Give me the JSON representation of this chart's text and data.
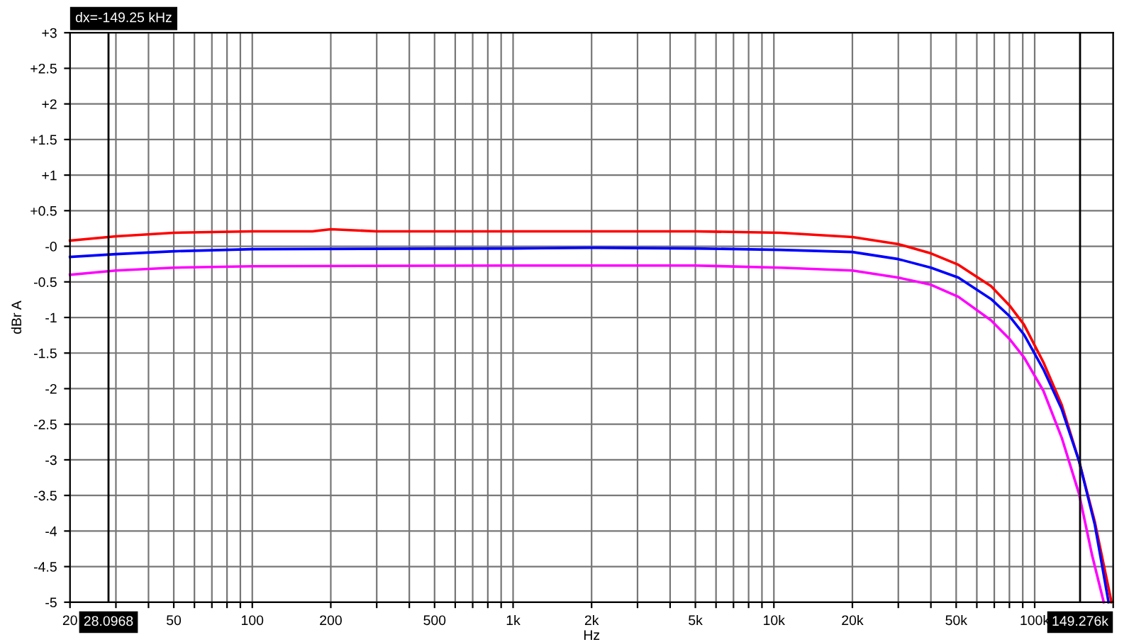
{
  "chart_data": {
    "type": "line",
    "xlabel": "Hz",
    "ylabel": "dBr A",
    "log": "x",
    "grid": true,
    "marker": "none",
    "line_style": "solid",
    "xlim": [
      20,
      200000
    ],
    "ylim": [
      -5,
      3
    ],
    "xticks": [
      20,
      {
        "value": 30,
        "label": null
      },
      {
        "value": 40,
        "label": null
      },
      50,
      {
        "value": 60,
        "label": null
      },
      {
        "value": 70,
        "label": null
      },
      {
        "value": 80,
        "label": null
      },
      {
        "value": 90,
        "label": null
      },
      100,
      200,
      {
        "value": 300,
        "label": null
      },
      {
        "value": 400,
        "label": null
      },
      500,
      {
        "value": 600,
        "label": null
      },
      {
        "value": 700,
        "label": null
      },
      {
        "value": 800,
        "label": null
      },
      {
        "value": 900,
        "label": null
      },
      {
        "value": 1000,
        "label": "1k"
      },
      {
        "value": 2000,
        "label": "2k"
      },
      {
        "value": 3000,
        "label": null
      },
      {
        "value": 4000,
        "label": null
      },
      {
        "value": 5000,
        "label": "5k"
      },
      {
        "value": 6000,
        "label": null
      },
      {
        "value": 7000,
        "label": null
      },
      {
        "value": 8000,
        "label": null
      },
      {
        "value": 9000,
        "label": null
      },
      {
        "value": 10000,
        "label": "10k"
      },
      {
        "value": 20000,
        "label": "20k"
      },
      {
        "value": 30000,
        "label": null
      },
      {
        "value": 40000,
        "label": null
      },
      {
        "value": 50000,
        "label": "50k"
      },
      {
        "value": 60000,
        "label": null
      },
      {
        "value": 70000,
        "label": null
      },
      {
        "value": 80000,
        "label": null
      },
      {
        "value": 90000,
        "label": null
      },
      {
        "value": 100000,
        "label": "100k"
      },
      {
        "value": 200000,
        "label": null
      }
    ],
    "yticks": [
      {
        "value": 3,
        "label": "+3"
      },
      {
        "value": 2.5,
        "label": "+2.5"
      },
      {
        "value": 2,
        "label": "+2"
      },
      {
        "value": 1.5,
        "label": "+1.5"
      },
      {
        "value": 1,
        "label": "+1"
      },
      {
        "value": 0.5,
        "label": "+0.5"
      },
      {
        "value": 0,
        "label": "-0"
      },
      -0.5,
      -1,
      -1.5,
      -2,
      -2.5,
      -3,
      -3.5,
      -4,
      -4.5,
      -5
    ],
    "series": [
      {
        "color": "#ff0000",
        "x": [
          20,
          30,
          50,
          100,
          170,
          200,
          300,
          1000,
          5000,
          10600,
          20000,
          30000,
          40000,
          51000,
          68000,
          80000,
          91000,
          108000,
          127000,
          148000,
          170000,
          197000
        ],
        "values": [
          0.08,
          0.14,
          0.19,
          0.21,
          0.21,
          0.24,
          0.21,
          0.21,
          0.21,
          0.19,
          0.13,
          0.03,
          -0.1,
          -0.26,
          -0.56,
          -0.83,
          -1.1,
          -1.63,
          -2.23,
          -3.02,
          -3.87,
          -5.0
        ]
      },
      {
        "color": "#0000ff",
        "x": [
          20,
          30,
          50,
          100,
          1000,
          2000,
          5000,
          10600,
          20000,
          30000,
          40000,
          51000,
          68000,
          80000,
          91000,
          108000,
          127000,
          148000,
          170000,
          192000
        ],
        "values": [
          -0.15,
          -0.11,
          -0.07,
          -0.04,
          -0.03,
          -0.02,
          -0.03,
          -0.05,
          -0.08,
          -0.18,
          -0.3,
          -0.44,
          -0.74,
          -0.98,
          -1.24,
          -1.73,
          -2.29,
          -3.02,
          -3.91,
          -5.0
        ]
      },
      {
        "color": "#ff00ff",
        "x": [
          20,
          30,
          50,
          100,
          1000,
          5000,
          10600,
          20000,
          30000,
          40000,
          51000,
          68000,
          80000,
          91000,
          108000,
          127000,
          148000,
          166000,
          184000
        ],
        "values": [
          -0.4,
          -0.34,
          -0.3,
          -0.28,
          -0.27,
          -0.27,
          -0.3,
          -0.34,
          -0.44,
          -0.54,
          -0.71,
          -1.04,
          -1.3,
          -1.56,
          -2.03,
          -2.69,
          -3.48,
          -4.34,
          -5.0
        ]
      }
    ],
    "ref_lines": [
      {
        "axis": "x",
        "value": 28.0968,
        "label": "28.0968",
        "color": "#000000"
      },
      {
        "axis": "x",
        "value": 149276,
        "label": "149.276k",
        "color": "#000000"
      }
    ],
    "annotations": [
      "dx=-149.25 kHz"
    ]
  }
}
